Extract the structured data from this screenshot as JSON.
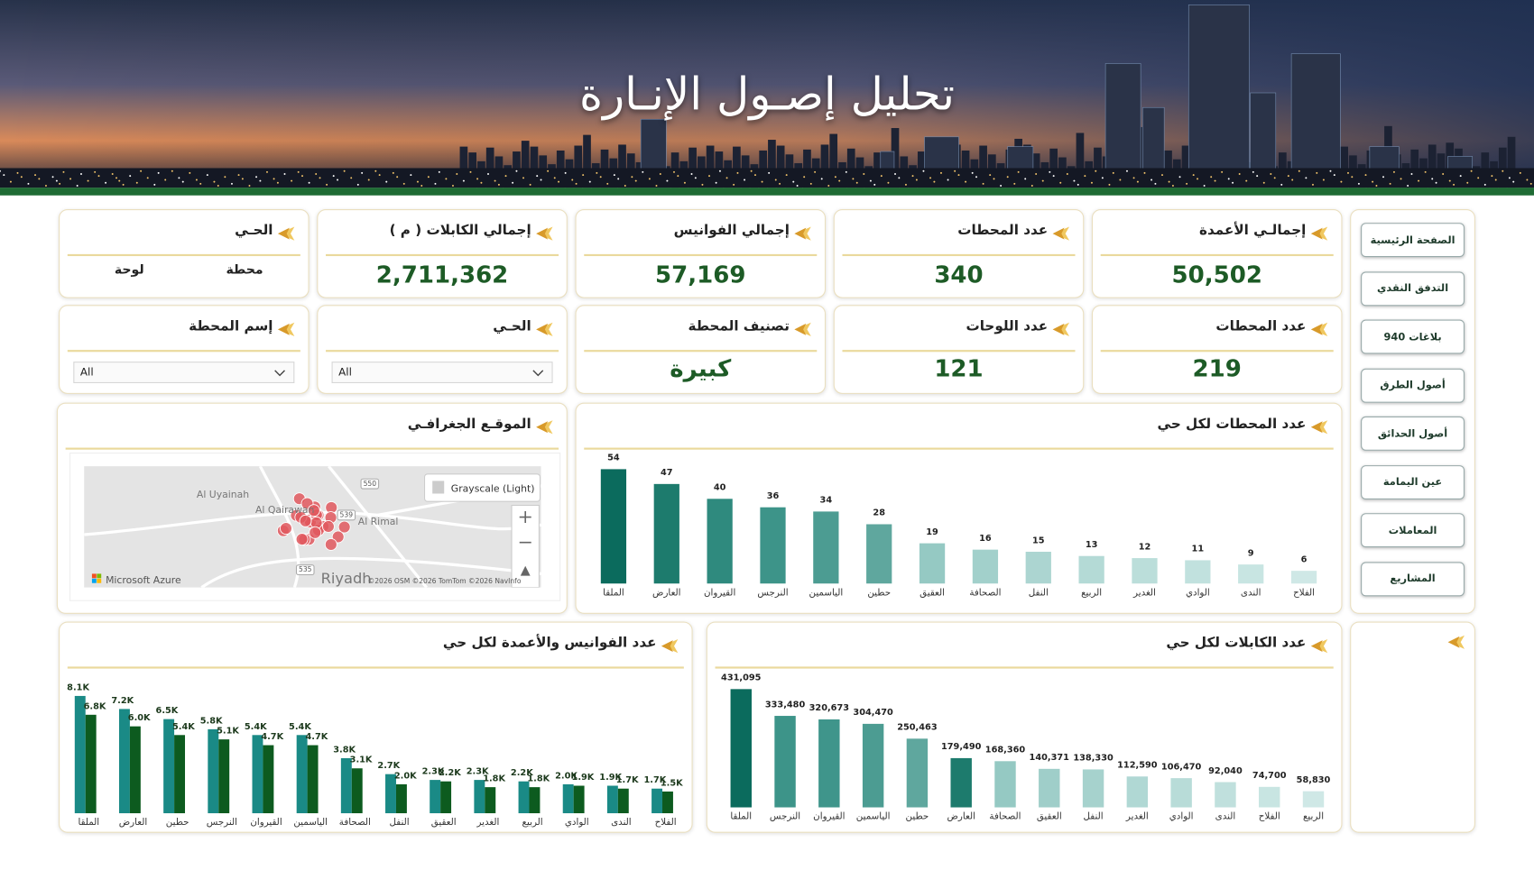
{
  "header": {
    "title": "تحليل إصـول الإنـارة"
  },
  "nav": [
    "الصفحة الرئيسية",
    "التدفق النقدي",
    "بلاغات 940",
    "أصول الطرق",
    "أصول الحدائق",
    "عين اليمامة",
    "المعاملات",
    "المشاريع"
  ],
  "kpis": [
    {
      "label": "إجمالـي الأعمدة",
      "value": "50,502"
    },
    {
      "label": "عدد المحطات",
      "value": "340"
    },
    {
      "label": "إجمالي الفوانيس",
      "value": "57,169"
    },
    {
      "label": "إجمالي الكابلات ( م )",
      "value": "2,711,362"
    }
  ],
  "district_card": {
    "label": "الحـي",
    "options": [
      "محطة",
      "لوحة"
    ]
  },
  "kpis2": [
    {
      "label": "عدد المحطات",
      "value": "219"
    },
    {
      "label": "عدد اللوحات",
      "value": "121"
    },
    {
      "label": "تصنيف المحطة",
      "value": "كبيرة"
    }
  ],
  "filters": [
    {
      "label": "الحـي",
      "value": "All"
    },
    {
      "label": "إسم المحطة",
      "value": "All"
    }
  ],
  "map": {
    "title": "الموقـع الجغرافـي",
    "style": "Grayscale (Light)",
    "places": [
      "Al Uyainah",
      "Al Qairawan",
      "Al Rimal",
      "Riyadh"
    ],
    "roads": [
      "550",
      "539",
      "535"
    ],
    "brand": "Microsoft Azure",
    "attribution": "©2026 OSM ©2026 TomTom ©2026 NavInfo"
  },
  "chart_data": [
    {
      "type": "bar",
      "title": "عدد المحطات لكل حي",
      "categories": [
        "الملقا",
        "العارض",
        "القيروان",
        "النرجس",
        "الياسمين",
        "حطين",
        "العقيق",
        "الصحافة",
        "النفل",
        "الربيع",
        "الغدير",
        "الوادي",
        "الندى",
        "الفلاح"
      ],
      "values": [
        54,
        47,
        40,
        36,
        34,
        28,
        19,
        16,
        15,
        13,
        12,
        11,
        9,
        6
      ],
      "colors": [
        "#0b6b5d",
        "#1d7b6d",
        "#2f8a7e",
        "#3d9489",
        "#4c9c92",
        "#5fa79e",
        "#95c9c3",
        "#a2d0cb",
        "#acd5d1",
        "#b4dad6",
        "#bbdeda",
        "#c1e1de",
        "#c8e5e2",
        "#cfe8e6"
      ]
    },
    {
      "type": "bar",
      "title": "عدد الكابلات لكل حي",
      "categories": [
        "الملقا",
        "النرجس",
        "القيروان",
        "الياسمين",
        "حطين",
        "العارض",
        "الصحافة",
        "العقيق",
        "النفل",
        "الغدير",
        "الوادي",
        "الندى",
        "الفلاح",
        "الربيع"
      ],
      "values": [
        431095,
        333480,
        320673,
        304470,
        250463,
        179490,
        168360,
        140371,
        138330,
        112590,
        106470,
        92040,
        74700,
        58830
      ],
      "value_labels": [
        "431,095",
        "333,480",
        "320,673",
        "304,470",
        "250,463",
        "179,490",
        "168,360",
        "140,371",
        "138,330",
        "112,590",
        "106,470",
        "92,040",
        "74,700",
        "58,830"
      ],
      "colors": [
        "#0b6b5d",
        "#3d9489",
        "#3f958b",
        "#4c9c92",
        "#5fa79e",
        "#1d7b6d",
        "#95c9c3",
        "#9fcec9",
        "#a6d2cd",
        "#b0d8d4",
        "#b8dcd8",
        "#c0e0dd",
        "#c8e5e2",
        "#cfe8e6"
      ]
    },
    {
      "type": "bar",
      "title": "عدد الفوانيس والأعمدة لكل حي",
      "categories": [
        "الملقا",
        "العارض",
        "حطين",
        "النرجس",
        "القيروان",
        "الياسمين",
        "الصحافة",
        "النفل",
        "العقيق",
        "الغدير",
        "الربيع",
        "الوادي",
        "الندى",
        "الفلاح"
      ],
      "series": [
        {
          "color": "#1a8a86",
          "values": [
            8100,
            7200,
            6500,
            5800,
            5400,
            5400,
            3800,
            2700,
            2300,
            2300,
            2200,
            2000,
            1900,
            1700
          ],
          "value_labels": [
            "8.1K",
            "7.2K",
            "6.5K",
            "5.8K",
            "5.4K",
            "5.4K",
            "3.8K",
            "2.7K",
            "2.3K",
            "2.3K",
            "2.2K",
            "2.0K",
            "1.9K",
            "1.7K"
          ]
        },
        {
          "color": "#0d5b1f",
          "values": [
            6800,
            6000,
            5400,
            5100,
            4700,
            4700,
            3100,
            2000,
            2200,
            1800,
            1800,
            1900,
            1700,
            1500
          ],
          "value_labels": [
            "6.8K",
            "6.0K",
            "5.4K",
            "5.1K",
            "4.7K",
            "4.7K",
            "3.1K",
            "2.0K",
            "2.2K",
            "1.8K",
            "1.8K",
            "1.9K",
            "1.7K",
            "1.5K"
          ]
        }
      ]
    }
  ]
}
